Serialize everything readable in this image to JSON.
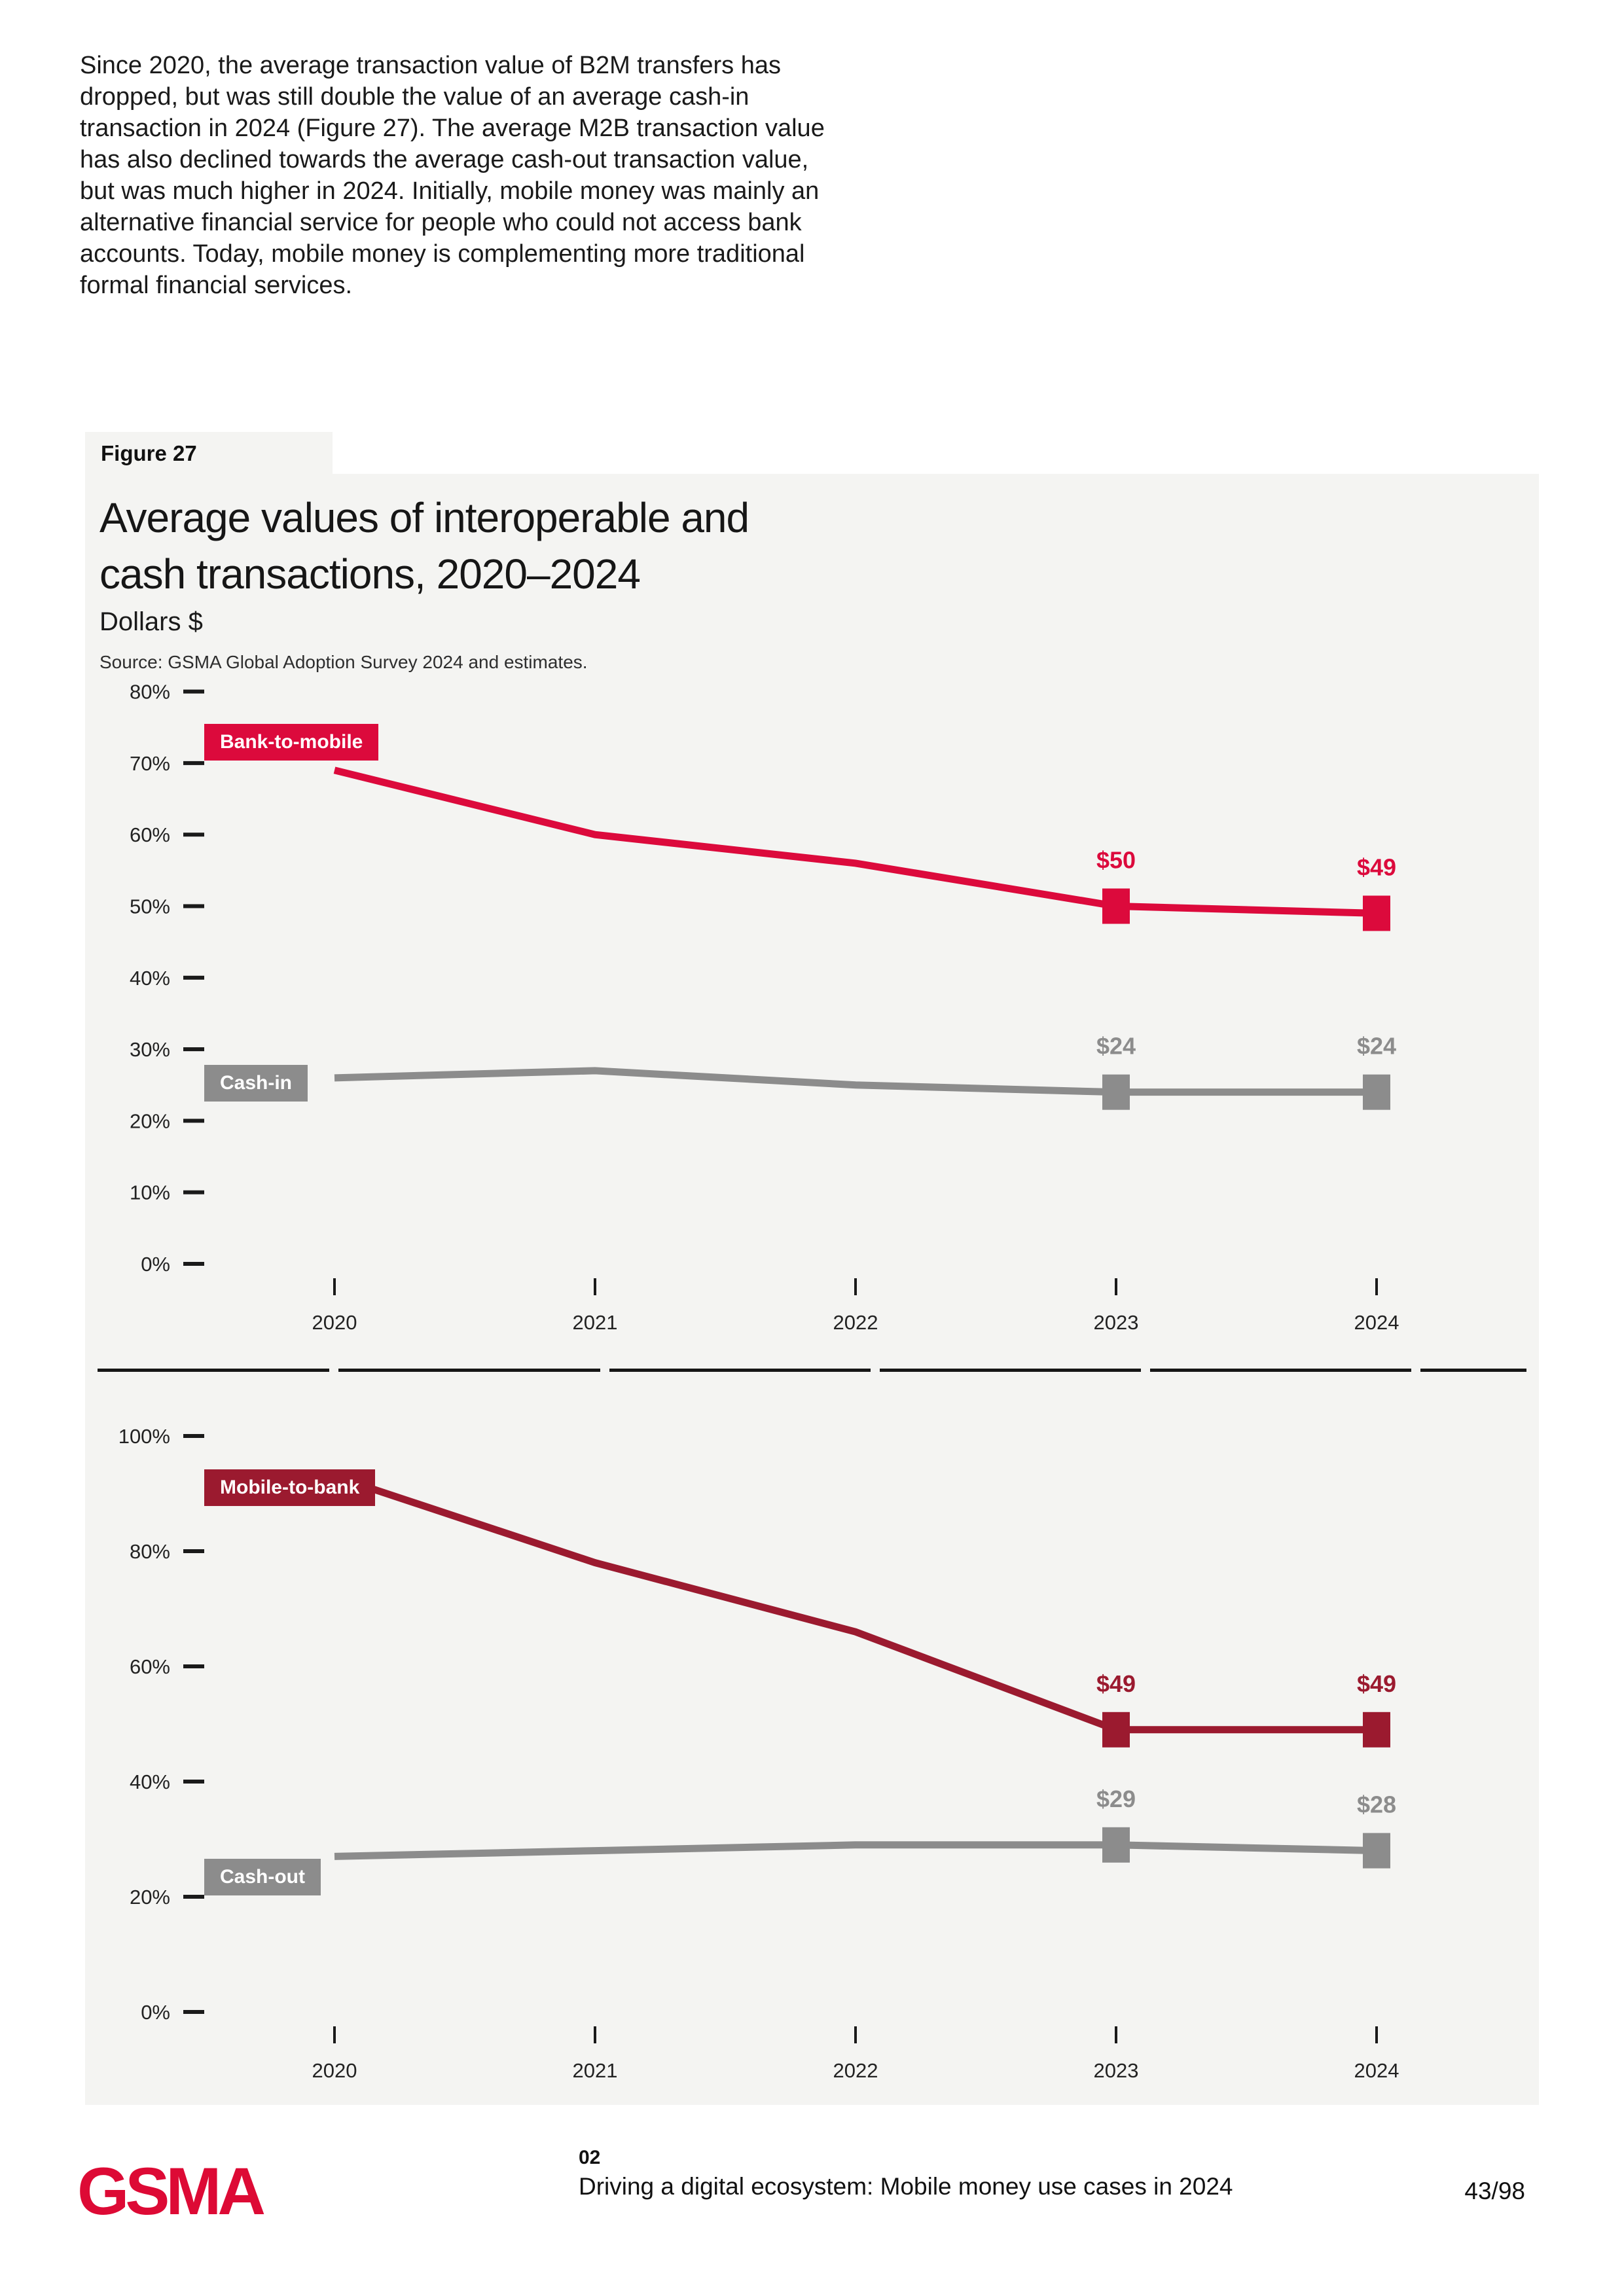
{
  "intro_paragraph": "Since 2020, the average transaction value of B2M transfers has dropped, but was still double the value of an average cash-in transaction in 2024 (Figure 27). The average M2B transaction value has also declined towards the average cash-out transaction value, but was much higher in 2024. Initially, mobile money was mainly an alternative financial service for people who could not access bank accounts. Today, mobile money is complementing more traditional formal financial services.",
  "figure": {
    "label": "Figure 27",
    "title_line1": "Average values of interoperable and",
    "title_line2": "cash transactions, 2020–2024",
    "subtitle": "Dollars $",
    "source": "Source: GSMA Global Adoption Survey 2024 and estimates."
  },
  "colors": {
    "accent_red": "#DC0A3C",
    "dark_red": "#9B1A2F",
    "gray": "#8C8C8C",
    "panel_background": "#F4F4F2",
    "logo_red": "#DD0A35"
  },
  "chart_data": [
    {
      "type": "line",
      "x": [
        "2020",
        "2021",
        "2022",
        "2023",
        "2024"
      ],
      "ylim": [
        0,
        80
      ],
      "ytick_step": 10,
      "yticks": [
        "80%",
        "70%",
        "60%",
        "50%",
        "40%",
        "30%",
        "20%",
        "10%",
        "0%"
      ],
      "grid": false,
      "legend_position": "inline-left",
      "series": [
        {
          "name": "Bank-to-mobile",
          "color": "#DC0A3C",
          "values": [
            69,
            60,
            56,
            50,
            49
          ],
          "point_labels": {
            "2023": "$50",
            "2024": "$49"
          }
        },
        {
          "name": "Cash-in",
          "color": "#8C8C8C",
          "values": [
            26,
            27,
            25,
            24,
            24
          ],
          "point_labels": {
            "2023": "$24",
            "2024": "$24"
          }
        }
      ]
    },
    {
      "type": "line",
      "x": [
        "2020",
        "2021",
        "2022",
        "2023",
        "2024"
      ],
      "ylim": [
        0,
        100
      ],
      "ytick_step": 20,
      "yticks": [
        "100%",
        "80%",
        "60%",
        "40%",
        "20%",
        "0%"
      ],
      "grid": false,
      "legend_position": "inline-left",
      "series": [
        {
          "name": "Mobile-to-bank",
          "color": "#9B1A2F",
          "values": [
            93,
            78,
            66,
            49,
            49
          ],
          "point_labels": {
            "2023": "$49",
            "2024": "$49"
          }
        },
        {
          "name": "Cash-out",
          "color": "#8C8C8C",
          "values": [
            27,
            28,
            29,
            29,
            28
          ],
          "point_labels": {
            "2023": "$29",
            "2024": "$28"
          }
        }
      ]
    }
  ],
  "footer": {
    "logo_text": "GSMA",
    "chapter_number": "02",
    "report_title": "Driving a digital ecosystem: Mobile money use cases in 2024",
    "page_indicator": "43/98"
  }
}
